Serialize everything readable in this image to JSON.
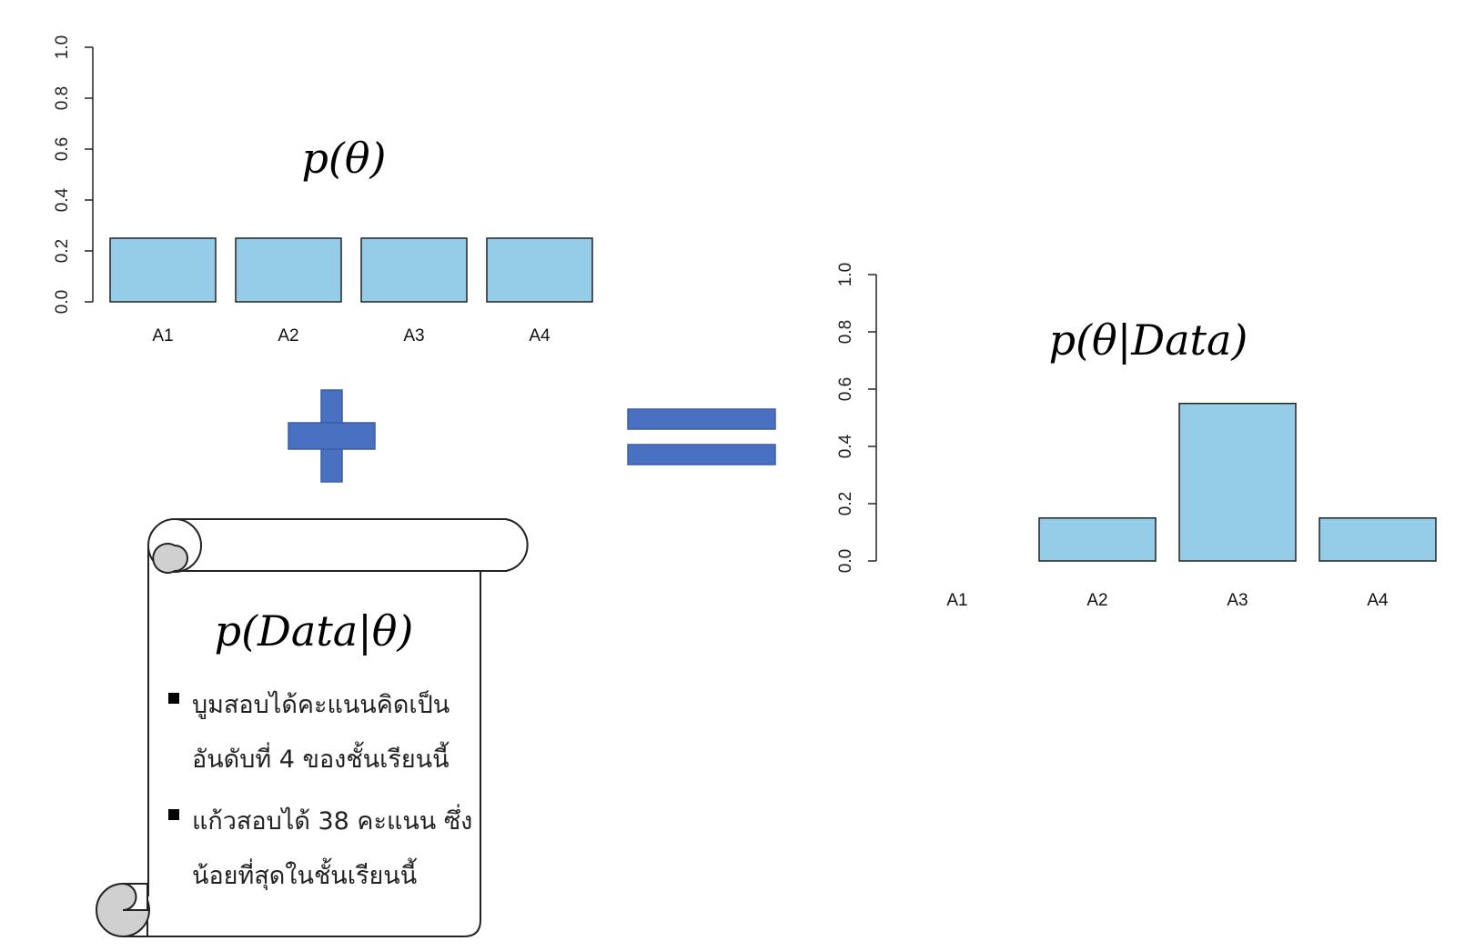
{
  "chart_data": [
    {
      "type": "bar",
      "title": "p(θ)",
      "categories": [
        "A1",
        "A2",
        "A3",
        "A4"
      ],
      "values": [
        0.25,
        0.25,
        0.25,
        0.25
      ],
      "ylim": [
        0,
        1
      ],
      "yticks": [
        "0.0",
        "0.2",
        "0.4",
        "0.6",
        "0.8",
        "1.0"
      ],
      "grid": false
    },
    {
      "type": "bar",
      "title": "p(θ|Data)",
      "categories": [
        "A1",
        "A2",
        "A3",
        "A4"
      ],
      "values": [
        0.0,
        0.15,
        0.55,
        0.15
      ],
      "ylim": [
        0,
        1
      ],
      "yticks": [
        "0.0",
        "0.2",
        "0.4",
        "0.6",
        "0.8",
        "1.0"
      ],
      "grid": false
    }
  ],
  "colors": {
    "bar_fill": "#95cde8",
    "operator": "#4a70c2",
    "scroll_curl": "#d0d0d0"
  },
  "icons": {
    "plus": "plus-icon",
    "equals": "equals-icon",
    "scroll": "scroll-icon"
  },
  "likelihood": {
    "title": "p(Data|θ)",
    "bullets": [
      [
        "บูมสอบได้คะแนนคิดเป็น",
        "อันดับที่ 4 ของชั้นเรียนนี้"
      ],
      [
        "แก้วสอบได้ 38 คะแนน ซึ่ง",
        "น้อยที่สุดในชั้นเรียนนี้"
      ]
    ]
  }
}
